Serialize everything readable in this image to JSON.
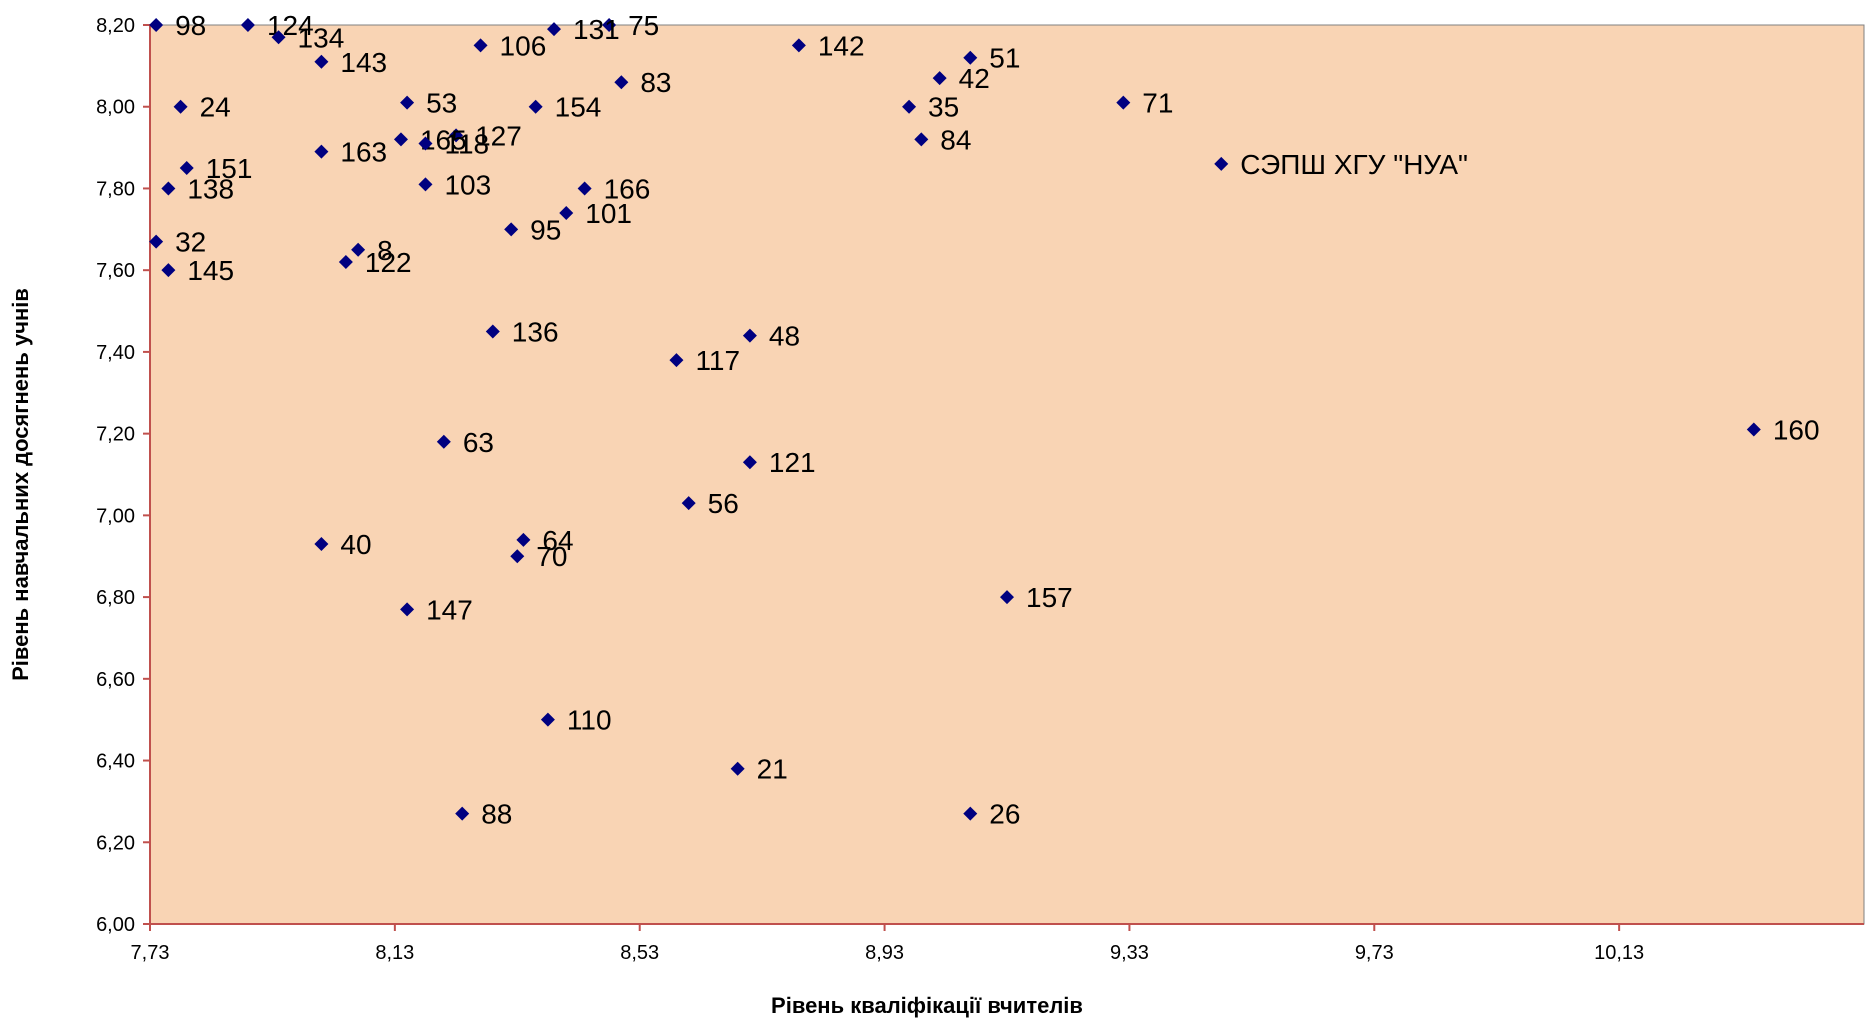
{
  "chart_data": {
    "type": "scatter",
    "title": "",
    "xlabel": "Рівень кваліфікації вчителів",
    "ylabel": "Рівень навчальних досягнень учнів",
    "xlim": [
      7.73,
      10.53
    ],
    "ylim": [
      6.0,
      8.2
    ],
    "x_ticks": [
      7.73,
      8.13,
      8.53,
      8.93,
      9.33,
      9.73,
      10.13
    ],
    "x_tick_labels": [
      "7,73",
      "8,13",
      "8,53",
      "8,93",
      "9,33",
      "9,73",
      "10,13"
    ],
    "y_ticks": [
      6.0,
      6.2,
      6.4,
      6.6,
      6.8,
      7.0,
      7.2,
      7.4,
      7.6,
      7.8,
      8.0,
      8.2
    ],
    "y_tick_labels": [
      "6,00",
      "6,20",
      "6,40",
      "6,60",
      "6,80",
      "7,00",
      "7,20",
      "7,40",
      "7,60",
      "7,80",
      "8,00",
      "8,20"
    ],
    "grid": false,
    "legend": "none",
    "colors": {
      "plot_background": "#F9D4B4",
      "marker": "#000080",
      "axis": "#C0504D"
    },
    "points": [
      {
        "label": "98",
        "x": 7.74,
        "y": 8.2
      },
      {
        "label": "124",
        "x": 7.89,
        "y": 8.2
      },
      {
        "label": "75",
        "x": 8.48,
        "y": 8.2
      },
      {
        "label": "131",
        "x": 8.39,
        "y": 8.19
      },
      {
        "label": "134",
        "x": 7.94,
        "y": 8.17
      },
      {
        "label": "106",
        "x": 8.27,
        "y": 8.15
      },
      {
        "label": "142",
        "x": 8.79,
        "y": 8.15
      },
      {
        "label": "51",
        "x": 9.07,
        "y": 8.12
      },
      {
        "label": "143",
        "x": 8.01,
        "y": 8.11
      },
      {
        "label": "42",
        "x": 9.02,
        "y": 8.07
      },
      {
        "label": "83",
        "x": 8.5,
        "y": 8.06
      },
      {
        "label": "53",
        "x": 8.15,
        "y": 8.01
      },
      {
        "label": "71",
        "x": 9.32,
        "y": 8.01
      },
      {
        "label": "24",
        "x": 7.78,
        "y": 8.0
      },
      {
        "label": "154",
        "x": 8.36,
        "y": 8.0
      },
      {
        "label": "35",
        "x": 8.97,
        "y": 8.0
      },
      {
        "label": "127",
        "x": 8.23,
        "y": 7.93
      },
      {
        "label": "84",
        "x": 8.99,
        "y": 7.92
      },
      {
        "label": "165",
        "x": 8.14,
        "y": 7.92
      },
      {
        "label": "118",
        "x": 8.18,
        "y": 7.91
      },
      {
        "label": "163",
        "x": 8.01,
        "y": 7.89
      },
      {
        "label": "СЭПШ ХГУ \"НУА\"",
        "x": 9.48,
        "y": 7.86
      },
      {
        "label": "151",
        "x": 7.79,
        "y": 7.85
      },
      {
        "label": "103",
        "x": 8.18,
        "y": 7.81
      },
      {
        "label": "138",
        "x": 7.76,
        "y": 7.8
      },
      {
        "label": "166",
        "x": 8.44,
        "y": 7.8
      },
      {
        "label": "101",
        "x": 8.41,
        "y": 7.74
      },
      {
        "label": "95",
        "x": 8.32,
        "y": 7.7
      },
      {
        "label": "32",
        "x": 7.74,
        "y": 7.67
      },
      {
        "label": "8",
        "x": 8.07,
        "y": 7.65
      },
      {
        "label": "122",
        "x": 8.05,
        "y": 7.62
      },
      {
        "label": "145",
        "x": 7.76,
        "y": 7.6
      },
      {
        "label": "136",
        "x": 8.29,
        "y": 7.45
      },
      {
        "label": "48",
        "x": 8.71,
        "y": 7.44
      },
      {
        "label": "117",
        "x": 8.59,
        "y": 7.38
      },
      {
        "label": "160",
        "x": 10.35,
        "y": 7.21
      },
      {
        "label": "63",
        "x": 8.21,
        "y": 7.18
      },
      {
        "label": "121",
        "x": 8.71,
        "y": 7.13
      },
      {
        "label": "56",
        "x": 8.61,
        "y": 7.03
      },
      {
        "label": "64",
        "x": 8.34,
        "y": 6.94
      },
      {
        "label": "40",
        "x": 8.01,
        "y": 6.93
      },
      {
        "label": "70",
        "x": 8.33,
        "y": 6.9
      },
      {
        "label": "157",
        "x": 9.13,
        "y": 6.8
      },
      {
        "label": "147",
        "x": 8.15,
        "y": 6.77
      },
      {
        "label": "110",
        "x": 8.38,
        "y": 6.5
      },
      {
        "label": "21",
        "x": 8.69,
        "y": 6.38
      },
      {
        "label": "88",
        "x": 8.24,
        "y": 6.27
      },
      {
        "label": "26",
        "x": 9.07,
        "y": 6.27
      }
    ]
  }
}
